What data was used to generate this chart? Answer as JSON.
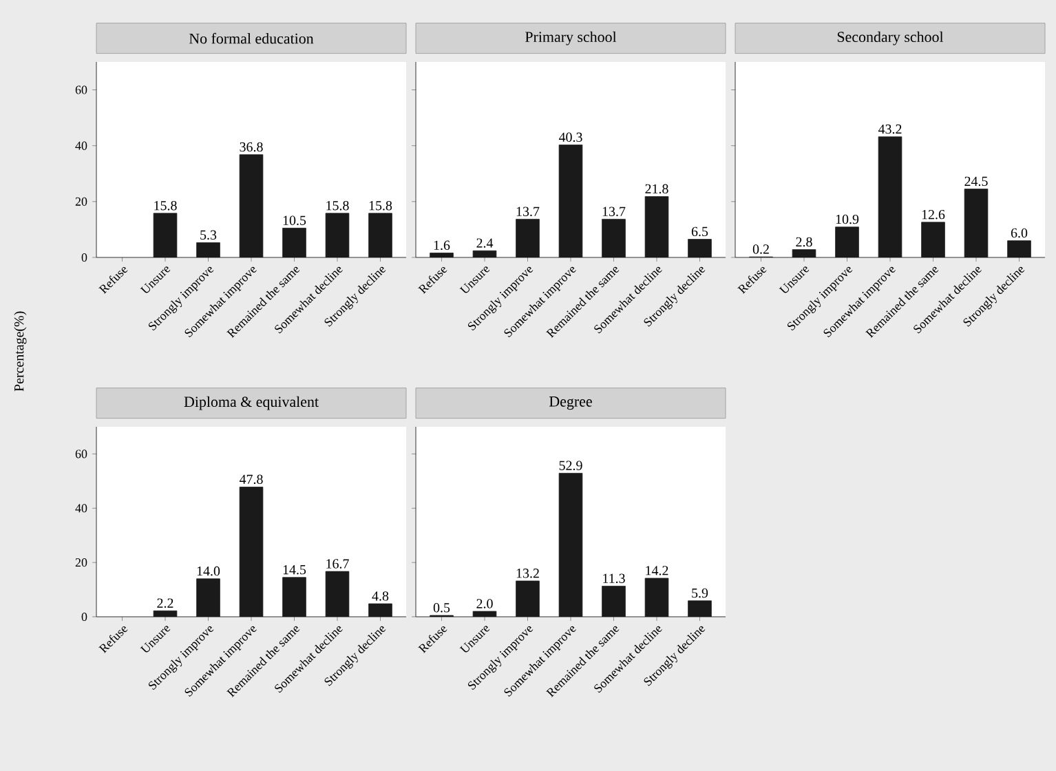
{
  "chart_data": [
    {
      "type": "bar",
      "title": "No formal education",
      "ylabel": "Percentage(%)",
      "categories": [
        "Refuse",
        "Unsure",
        "Strongly improve",
        "Somewhat improve",
        "Remained the same",
        "Somewhat decline",
        "Strongly decline"
      ],
      "values": [
        null,
        15.8,
        5.3,
        36.8,
        10.5,
        15.8,
        15.8
      ],
      "value_labels": [
        null,
        "15.8",
        "5.3",
        "36.8",
        "10.5",
        "15.8",
        "15.8"
      ],
      "color": "#1a1a1a",
      "ylim": [
        0,
        70
      ],
      "yticks": [
        0,
        20,
        40,
        60
      ]
    },
    {
      "type": "bar",
      "title": "Primary school",
      "categories": [
        "Refuse",
        "Unsure",
        "Strongly improve",
        "Somewhat improve",
        "Remained the same",
        "Somewhat decline",
        "Strongly decline"
      ],
      "values": [
        1.6,
        2.4,
        13.7,
        40.3,
        13.7,
        21.8,
        6.5
      ],
      "value_labels": [
        "1.6",
        "2.4",
        "13.7",
        "40.3",
        "13.7",
        "21.8",
        "6.5"
      ],
      "color": "#1a1a1a",
      "ylim": [
        0,
        70
      ],
      "yticks": [
        0,
        20,
        40,
        60
      ],
      "tick_labels": "x"
    },
    {
      "type": "bar",
      "title": "Secondary school",
      "categories": [
        "Refuse",
        "Unsure",
        "Strongly improve",
        "Somewhat improve",
        "Remained the same",
        "Somewhat decline",
        "Strongly decline"
      ],
      "values": [
        0.2,
        2.8,
        10.9,
        43.2,
        12.6,
        24.5,
        6.0
      ],
      "value_labels": [
        "0.2",
        "2.8",
        "10.9",
        "43.2",
        "12.6",
        "24.5",
        "6.0"
      ],
      "color": "#1a1a1a",
      "ylim": [
        0,
        70
      ],
      "yticks": [
        0,
        20,
        40,
        60
      ],
      "tick_labels": "x"
    },
    {
      "type": "bar",
      "title": "Diploma & equivalent",
      "categories": [
        "Refuse",
        "Unsure",
        "Strongly improve",
        "Somewhat improve",
        "Remained the same",
        "Somewhat decline",
        "Strongly decline"
      ],
      "values": [
        null,
        2.2,
        14.0,
        47.8,
        14.5,
        16.7,
        4.8
      ],
      "value_labels": [
        null,
        "2.2",
        "14.0",
        "47.8",
        "14.5",
        "16.7",
        "4.8"
      ],
      "color": "#1a1a1a",
      "ylim": [
        0,
        70
      ],
      "yticks": [
        0,
        20,
        40,
        60
      ]
    },
    {
      "type": "bar",
      "title": "Degree",
      "categories": [
        "Refuse",
        "Unsure",
        "Strongly improve",
        "Somewhat improve",
        "Remained the same",
        "Somewhat decline",
        "Strongly decline"
      ],
      "values": [
        0.5,
        2.0,
        13.2,
        52.9,
        11.3,
        14.2,
        5.9
      ],
      "value_labels": [
        "0.5",
        "2.0",
        "13.2",
        "52.9",
        "11.3",
        "14.2",
        "5.9"
      ],
      "color": "#1a1a1a",
      "ylim": [
        0,
        70
      ],
      "yticks": [
        0,
        20,
        40,
        60
      ],
      "tick_labels": "x"
    }
  ]
}
